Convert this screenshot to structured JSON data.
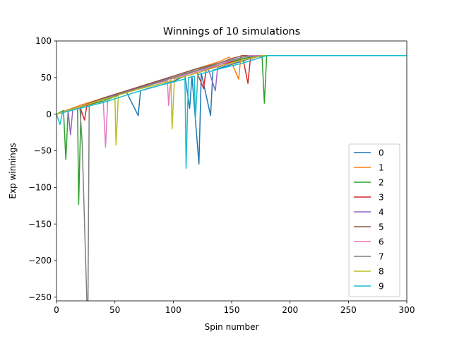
{
  "chart_data": {
    "type": "line",
    "title": "Winnings of 10 simulations",
    "xlabel": "Spin number",
    "ylabel": "Exp winnings",
    "xlim": [
      0,
      300
    ],
    "ylim": [
      -255,
      100
    ],
    "xticks": [
      0,
      50,
      100,
      150,
      200,
      250,
      300
    ],
    "yticks": [
      -250,
      -200,
      -150,
      -100,
      -50,
      0,
      50,
      100
    ],
    "ytick_labels": [
      "−250",
      "−200",
      "−150",
      "−100",
      "−50",
      "0",
      "50",
      "100"
    ],
    "grid": false,
    "legend_position": "lower right",
    "series": [
      {
        "name": "0",
        "color": "#1f77b4",
        "values": [
          [
            0,
            0
          ],
          [
            20,
            10
          ],
          [
            40,
            20
          ],
          [
            60,
            30
          ],
          [
            70,
            -2
          ],
          [
            72,
            32
          ],
          [
            90,
            40
          ],
          [
            100,
            45
          ],
          [
            110,
            52
          ],
          [
            114,
            8
          ],
          [
            116,
            52
          ],
          [
            122,
            -68
          ],
          [
            124,
            56
          ],
          [
            132,
            -2
          ],
          [
            134,
            60
          ],
          [
            150,
            68
          ],
          [
            170,
            78
          ],
          [
            180,
            80
          ],
          [
            300,
            80
          ]
        ]
      },
      {
        "name": "1",
        "color": "#ff7f0e",
        "values": [
          [
            0,
            0
          ],
          [
            20,
            12
          ],
          [
            40,
            22
          ],
          [
            60,
            32
          ],
          [
            80,
            42
          ],
          [
            100,
            52
          ],
          [
            120,
            62
          ],
          [
            140,
            72
          ],
          [
            148,
            78
          ],
          [
            156,
            48
          ],
          [
            158,
            80
          ],
          [
            300,
            80
          ]
        ]
      },
      {
        "name": "2",
        "color": "#2ca02c",
        "values": [
          [
            0,
            0
          ],
          [
            6,
            5
          ],
          [
            8,
            -62
          ],
          [
            10,
            5
          ],
          [
            18,
            8
          ],
          [
            19,
            -123
          ],
          [
            21,
            10
          ],
          [
            40,
            18
          ],
          [
            60,
            30
          ],
          [
            80,
            40
          ],
          [
            100,
            50
          ],
          [
            120,
            60
          ],
          [
            140,
            68
          ],
          [
            160,
            76
          ],
          [
            176,
            80
          ],
          [
            178,
            15
          ],
          [
            180,
            80
          ],
          [
            300,
            80
          ]
        ]
      },
      {
        "name": "3",
        "color": "#d62728",
        "values": [
          [
            0,
            0
          ],
          [
            20,
            10
          ],
          [
            24,
            -8
          ],
          [
            26,
            12
          ],
          [
            40,
            20
          ],
          [
            60,
            30
          ],
          [
            80,
            40
          ],
          [
            90,
            45
          ],
          [
            100,
            50
          ],
          [
            120,
            58
          ],
          [
            126,
            35
          ],
          [
            128,
            60
          ],
          [
            140,
            68
          ],
          [
            160,
            74
          ],
          [
            164,
            42
          ],
          [
            166,
            76
          ],
          [
            176,
            80
          ],
          [
            300,
            80
          ]
        ]
      },
      {
        "name": "4",
        "color": "#9467bd",
        "values": [
          [
            0,
            0
          ],
          [
            10,
            5
          ],
          [
            12,
            -28
          ],
          [
            14,
            7
          ],
          [
            30,
            16
          ],
          [
            50,
            26
          ],
          [
            70,
            36
          ],
          [
            90,
            46
          ],
          [
            110,
            54
          ],
          [
            130,
            62
          ],
          [
            136,
            32
          ],
          [
            138,
            64
          ],
          [
            150,
            70
          ],
          [
            170,
            78
          ],
          [
            178,
            80
          ],
          [
            300,
            80
          ]
        ]
      },
      {
        "name": "5",
        "color": "#8c564b",
        "values": [
          [
            0,
            0
          ],
          [
            20,
            10
          ],
          [
            40,
            22
          ],
          [
            60,
            32
          ],
          [
            80,
            42
          ],
          [
            100,
            52
          ],
          [
            120,
            62
          ],
          [
            140,
            70
          ],
          [
            150,
            76
          ],
          [
            160,
            80
          ],
          [
            300,
            80
          ]
        ]
      },
      {
        "name": "6",
        "color": "#e377c2",
        "values": [
          [
            0,
            0
          ],
          [
            20,
            10
          ],
          [
            40,
            20
          ],
          [
            42,
            -45
          ],
          [
            44,
            22
          ],
          [
            60,
            30
          ],
          [
            80,
            40
          ],
          [
            95,
            46
          ],
          [
            96,
            12
          ],
          [
            98,
            48
          ],
          [
            120,
            58
          ],
          [
            140,
            68
          ],
          [
            160,
            78
          ],
          [
            165,
            80
          ],
          [
            300,
            80
          ]
        ]
      },
      {
        "name": "7",
        "color": "#7f7f7f",
        "values": [
          [
            0,
            0
          ],
          [
            15,
            8
          ],
          [
            20,
            10
          ],
          [
            22,
            -40
          ],
          [
            24,
            -150
          ],
          [
            26,
            -255
          ],
          [
            27,
            -255
          ],
          [
            28,
            14
          ],
          [
            40,
            20
          ],
          [
            60,
            30
          ],
          [
            80,
            40
          ],
          [
            100,
            50
          ],
          [
            120,
            60
          ],
          [
            140,
            70
          ],
          [
            160,
            78
          ],
          [
            178,
            80
          ],
          [
            300,
            80
          ]
        ]
      },
      {
        "name": "8",
        "color": "#bcbd22",
        "values": [
          [
            0,
            0
          ],
          [
            20,
            10
          ],
          [
            40,
            20
          ],
          [
            50,
            24
          ],
          [
            51,
            -42
          ],
          [
            53,
            26
          ],
          [
            70,
            34
          ],
          [
            90,
            42
          ],
          [
            98,
            46
          ],
          [
            99,
            -20
          ],
          [
            101,
            48
          ],
          [
            120,
            56
          ],
          [
            140,
            66
          ],
          [
            160,
            74
          ],
          [
            170,
            78
          ],
          [
            176,
            80
          ],
          [
            300,
            80
          ]
        ]
      },
      {
        "name": "9",
        "color": "#17becf",
        "values": [
          [
            0,
            0
          ],
          [
            3,
            -14
          ],
          [
            5,
            2
          ],
          [
            20,
            8
          ],
          [
            40,
            16
          ],
          [
            60,
            26
          ],
          [
            80,
            36
          ],
          [
            100,
            44
          ],
          [
            110,
            48
          ],
          [
            111,
            -74
          ],
          [
            113,
            50
          ],
          [
            118,
            52
          ],
          [
            119,
            -8
          ],
          [
            121,
            54
          ],
          [
            140,
            62
          ],
          [
            160,
            70
          ],
          [
            172,
            76
          ],
          [
            180,
            80
          ],
          [
            300,
            80
          ]
        ]
      }
    ]
  }
}
